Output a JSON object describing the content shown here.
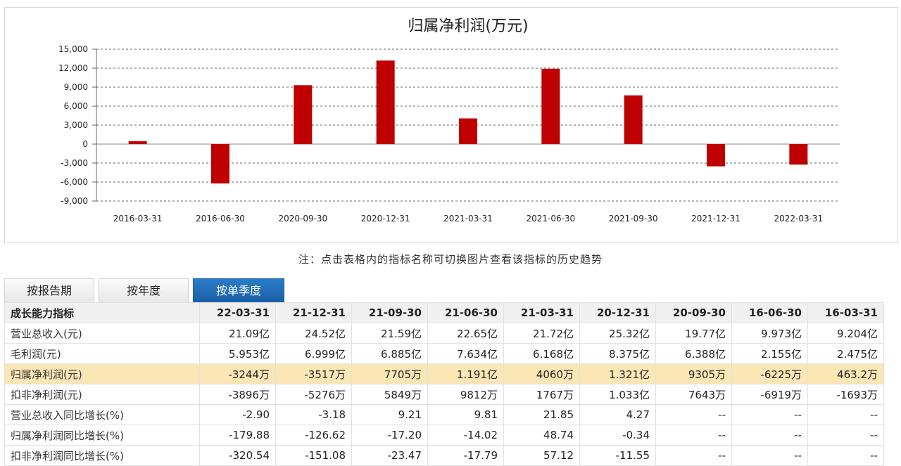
{
  "chart_data": {
    "type": "bar",
    "title": "归属净利润(万元)",
    "categories": [
      "2016-03-31",
      "2016-06-30",
      "2020-09-30",
      "2020-12-31",
      "2021-03-31",
      "2021-06-30",
      "2021-09-30",
      "2021-12-31",
      "2022-03-31"
    ],
    "values": [
      463.2,
      -6225,
      9305,
      13210,
      4060,
      11910,
      7705,
      -3517,
      -3244
    ],
    "yticks": [
      15000,
      12000,
      9000,
      6000,
      3000,
      0,
      -3000,
      -6000,
      -9000
    ],
    "ytick_labels": [
      "15,000",
      "12,000",
      "9,000",
      "6,000",
      "3,000",
      "0",
      "-3,000",
      "-6,000",
      "-9,000"
    ],
    "ylim": [
      -9000,
      15000
    ],
    "grid": true,
    "bar_color": "#c00000"
  },
  "note": "注：点击表格内的指标名称可切换图片查看该指标的历史趋势",
  "tabs": [
    {
      "label": "按报告期",
      "active": false
    },
    {
      "label": "按年度",
      "active": false
    },
    {
      "label": "按单季度",
      "active": true
    }
  ],
  "table": {
    "headers": [
      "成长能力指标",
      "22-03-31",
      "21-12-31",
      "21-09-30",
      "21-06-30",
      "21-03-31",
      "20-12-31",
      "20-09-30",
      "16-06-30",
      "16-03-31"
    ],
    "rows": [
      {
        "label": "营业总收入(元)",
        "values": [
          "21.09亿",
          "24.52亿",
          "21.59亿",
          "22.65亿",
          "21.72亿",
          "25.32亿",
          "19.77亿",
          "9.973亿",
          "9.204亿"
        ],
        "highlight": false
      },
      {
        "label": "毛利润(元)",
        "values": [
          "5.953亿",
          "6.999亿",
          "6.885亿",
          "7.634亿",
          "6.168亿",
          "8.375亿",
          "6.388亿",
          "2.155亿",
          "2.475亿"
        ],
        "highlight": false
      },
      {
        "label": "归属净利润(元)",
        "values": [
          "-3244万",
          "-3517万",
          "7705万",
          "1.191亿",
          "4060万",
          "1.321亿",
          "9305万",
          "-6225万",
          "463.2万"
        ],
        "highlight": true
      },
      {
        "label": "扣非净利润(元)",
        "values": [
          "-3896万",
          "-5276万",
          "5849万",
          "9812万",
          "1767万",
          "1.033亿",
          "7643万",
          "-6919万",
          "-1693万"
        ],
        "highlight": false
      },
      {
        "label": "营业总收入同比增长(%)",
        "values": [
          "-2.90",
          "-3.18",
          "9.21",
          "9.81",
          "21.85",
          "4.27",
          "--",
          "--",
          "--"
        ],
        "highlight": false
      },
      {
        "label": "归属净利润同比增长(%)",
        "values": [
          "-179.88",
          "-126.62",
          "-17.20",
          "-14.02",
          "48.74",
          "-0.34",
          "--",
          "--",
          "--"
        ],
        "highlight": false
      },
      {
        "label": "扣非净利润同比增长(%)",
        "values": [
          "-320.54",
          "-151.08",
          "-23.47",
          "-17.79",
          "57.12",
          "-11.55",
          "--",
          "--",
          "--"
        ],
        "highlight": false
      }
    ]
  }
}
